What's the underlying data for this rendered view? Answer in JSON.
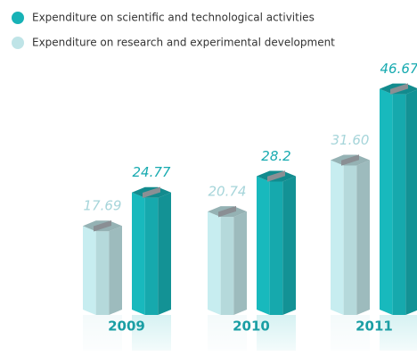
{
  "chart_data": {
    "type": "bar",
    "categories": [
      "2009",
      "2010",
      "2011"
    ],
    "series": [
      {
        "name": "Expenditure on scientific and technological activities",
        "color": "#17b2b6",
        "values": [
          24.77,
          28.2,
          46.67
        ]
      },
      {
        "name": "Expenditure on research and experimental development",
        "color": "#bfe4e7",
        "values": [
          17.69,
          20.74,
          31.6
        ],
        "value_labels": [
          "17.69",
          "20.74",
          "31.60"
        ]
      }
    ]
  }
}
